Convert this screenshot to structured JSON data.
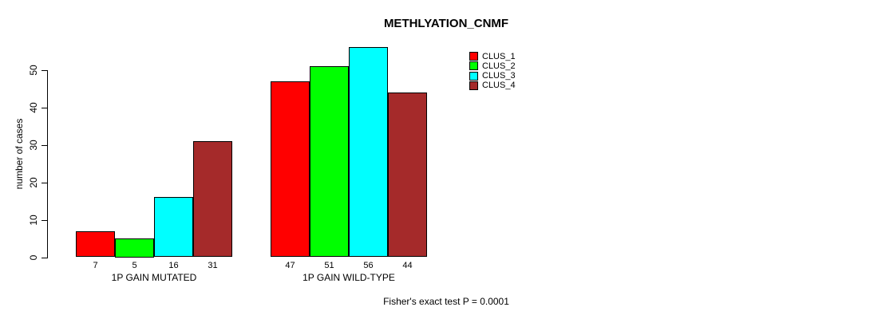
{
  "chart_data": {
    "type": "bar",
    "title": "METHLYATION_CNMF",
    "ylabel": "number of cases",
    "xlabel": "",
    "categories": [
      "1P GAIN MUTATED",
      "1P GAIN WILD-TYPE"
    ],
    "series": [
      {
        "name": "CLUS_1",
        "color": "#FF0000",
        "values": [
          7,
          47
        ]
      },
      {
        "name": "CLUS_2",
        "color": "#00FF00",
        "values": [
          5,
          51
        ]
      },
      {
        "name": "CLUS_3",
        "color": "#00FFFF",
        "values": [
          16,
          56
        ]
      },
      {
        "name": "CLUS_4",
        "color": "#A52A2A",
        "values": [
          31,
          44
        ]
      }
    ],
    "bar_value_labels": [
      [
        7,
        5,
        16,
        31
      ],
      [
        47,
        51,
        56,
        44
      ]
    ],
    "yticks": [
      0,
      10,
      20,
      30,
      40,
      50
    ],
    "ylim": [
      0,
      57
    ],
    "grid": false,
    "legend_position": "top-right",
    "legend_entries": [
      "CLUS_1",
      "CLUS_2",
      "CLUS_3",
      "CLUS_4"
    ],
    "annotation": "Fisher's exact test P = 0.0001"
  }
}
